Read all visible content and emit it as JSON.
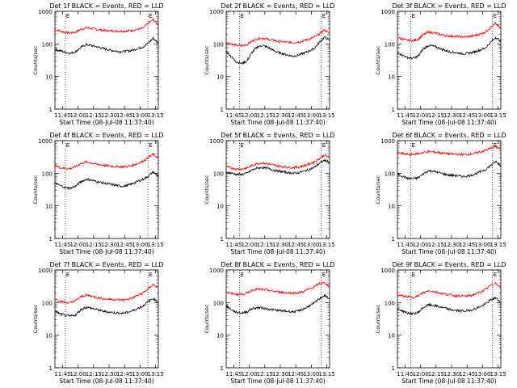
{
  "figure": {
    "ylabel": "Counts/sec",
    "xlabel": "Start Time (08-Jul-08 11:37:40)",
    "x_tick_labels": [
      "11:45",
      "12:00",
      "12:15",
      "12:30",
      "12:45",
      "13:00",
      "13:15"
    ],
    "y_tick_labels": [
      "1",
      "10",
      "100",
      "1000"
    ],
    "marker_labels": [
      "E",
      "E"
    ],
    "colors": {
      "events": "#000000",
      "lld": "#ff0000"
    }
  },
  "chart_data": [
    {
      "type": "line",
      "title": "Det 1f BLACK = Events, RED = LLD",
      "x_unit": "minutes since 11:37:40",
      "xlim": [
        0,
        100
      ],
      "ylim": [
        1,
        1000
      ],
      "log_y": true,
      "vlines_x": [
        10,
        90
      ],
      "x": [
        0,
        5,
        10,
        15,
        20,
        25,
        30,
        35,
        40,
        45,
        50,
        55,
        60,
        65,
        70,
        75,
        80,
        85,
        90,
        95,
        100
      ],
      "series": [
        {
          "name": "LLD",
          "color": "#ff0000",
          "values": [
            270,
            250,
            225,
            215,
            230,
            280,
            310,
            300,
            280,
            265,
            255,
            250,
            248,
            245,
            250,
            260,
            280,
            300,
            420,
            560,
            380
          ]
        },
        {
          "name": "Events",
          "color": "#000000",
          "values": [
            68,
            62,
            55,
            52,
            58,
            78,
            95,
            90,
            82,
            75,
            68,
            63,
            60,
            58,
            60,
            64,
            72,
            80,
            105,
            150,
            105
          ]
        }
      ]
    },
    {
      "type": "line",
      "title": "Det 2f BLACK = Events, RED = LLD",
      "x_unit": "minutes since 11:37:40",
      "xlim": [
        0,
        100
      ],
      "ylim": [
        1,
        1000
      ],
      "log_y": true,
      "vlines_x": [
        13,
        92
      ],
      "x": [
        0,
        5,
        10,
        15,
        20,
        25,
        30,
        35,
        40,
        45,
        50,
        55,
        60,
        65,
        70,
        75,
        80,
        85,
        90,
        95,
        100
      ],
      "series": [
        {
          "name": "LLD",
          "color": "#ff0000",
          "values": [
            115,
            100,
            90,
            88,
            95,
            120,
            145,
            150,
            140,
            130,
            120,
            115,
            112,
            110,
            115,
            125,
            140,
            160,
            200,
            270,
            210
          ]
        },
        {
          "name": "Events",
          "color": "#000000",
          "values": [
            60,
            40,
            28,
            25,
            30,
            55,
            80,
            90,
            80,
            65,
            55,
            50,
            45,
            42,
            46,
            52,
            60,
            72,
            110,
            160,
            130
          ]
        }
      ]
    },
    {
      "type": "line",
      "title": "Det 3f BLACK = Events, RED = LLD",
      "x_unit": "minutes since 11:37:40",
      "xlim": [
        0,
        100
      ],
      "ylim": [
        1,
        1000
      ],
      "log_y": true,
      "vlines_x": [
        13,
        92
      ],
      "x": [
        0,
        5,
        10,
        15,
        20,
        25,
        30,
        35,
        40,
        45,
        50,
        55,
        60,
        65,
        70,
        75,
        80,
        85,
        90,
        95,
        100
      ],
      "series": [
        {
          "name": "LLD",
          "color": "#ff0000",
          "values": [
            160,
            140,
            130,
            125,
            140,
            190,
            230,
            220,
            200,
            185,
            175,
            170,
            168,
            165,
            170,
            180,
            200,
            230,
            320,
            420,
            300
          ]
        },
        {
          "name": "Events",
          "color": "#000000",
          "values": [
            55,
            45,
            38,
            36,
            42,
            70,
            90,
            85,
            75,
            65,
            58,
            55,
            52,
            50,
            53,
            58,
            65,
            75,
            110,
            160,
            120
          ]
        }
      ]
    },
    {
      "type": "line",
      "title": "Det 4f BLACK = Events, RED = LLD",
      "x_unit": "minutes since 11:37:40",
      "xlim": [
        0,
        100
      ],
      "ylim": [
        1,
        1000
      ],
      "log_y": true,
      "vlines_x": [
        10,
        90
      ],
      "x": [
        0,
        5,
        10,
        15,
        20,
        25,
        30,
        35,
        40,
        45,
        50,
        55,
        60,
        65,
        70,
        75,
        80,
        85,
        90,
        95,
        100
      ],
      "series": [
        {
          "name": "LLD",
          "color": "#ff0000",
          "values": [
            175,
            150,
            140,
            140,
            160,
            200,
            220,
            210,
            190,
            180,
            170,
            165,
            160,
            158,
            162,
            175,
            200,
            230,
            300,
            380,
            300
          ]
        },
        {
          "name": "Events",
          "color": "#000000",
          "values": [
            50,
            42,
            36,
            35,
            40,
            55,
            65,
            62,
            56,
            52,
            48,
            45,
            42,
            40,
            42,
            48,
            56,
            65,
            80,
            110,
            80
          ]
        }
      ]
    },
    {
      "type": "line",
      "title": "Det 5f BLACK = Events, RED = LLD",
      "x_unit": "minutes since 11:37:40",
      "xlim": [
        0,
        100
      ],
      "ylim": [
        1,
        1000
      ],
      "log_y": true,
      "vlines_x": [
        13,
        92
      ],
      "x": [
        0,
        5,
        10,
        15,
        20,
        25,
        30,
        35,
        40,
        45,
        50,
        55,
        60,
        65,
        70,
        75,
        80,
        85,
        90,
        95,
        100
      ],
      "series": [
        {
          "name": "LLD",
          "color": "#ff0000",
          "values": [
            160,
            145,
            135,
            135,
            145,
            175,
            200,
            205,
            195,
            180,
            170,
            160,
            152,
            150,
            155,
            170,
            190,
            220,
            280,
            360,
            310
          ]
        },
        {
          "name": "Events",
          "color": "#000000",
          "values": [
            110,
            100,
            92,
            92,
            100,
            125,
            145,
            150,
            140,
            128,
            118,
            110,
            104,
            100,
            104,
            115,
            130,
            150,
            200,
            250,
            220
          ]
        }
      ]
    },
    {
      "type": "line",
      "title": "Det 6f BLACK = Events, RED = LLD",
      "x_unit": "minutes since 11:37:40",
      "xlim": [
        0,
        100
      ],
      "ylim": [
        1,
        1000
      ],
      "log_y": true,
      "vlines_x": [
        13,
        92
      ],
      "x": [
        0,
        5,
        10,
        15,
        20,
        25,
        30,
        35,
        40,
        45,
        50,
        55,
        60,
        65,
        70,
        75,
        80,
        85,
        90,
        95,
        100
      ],
      "series": [
        {
          "name": "LLD",
          "color": "#ff0000",
          "values": [
            420,
            400,
            380,
            380,
            400,
            430,
            460,
            450,
            430,
            410,
            395,
            385,
            378,
            375,
            385,
            410,
            450,
            500,
            580,
            650,
            560
          ]
        },
        {
          "name": "Events",
          "color": "#000000",
          "values": [
            95,
            80,
            70,
            68,
            72,
            95,
            120,
            115,
            105,
            95,
            88,
            85,
            82,
            80,
            85,
            95,
            110,
            130,
            170,
            230,
            170
          ]
        }
      ]
    },
    {
      "type": "line",
      "title": "Det 7f BLACK = Events, RED = LLD",
      "x_unit": "minutes since 11:37:40",
      "xlim": [
        0,
        100
      ],
      "ylim": [
        1,
        1000
      ],
      "log_y": true,
      "vlines_x": [
        10,
        90
      ],
      "x": [
        0,
        5,
        10,
        15,
        20,
        25,
        30,
        35,
        40,
        45,
        50,
        55,
        60,
        65,
        70,
        75,
        80,
        85,
        90,
        95,
        100
      ],
      "series": [
        {
          "name": "LLD",
          "color": "#ff0000",
          "values": [
            130,
            110,
            100,
            100,
            115,
            150,
            170,
            160,
            145,
            135,
            128,
            125,
            122,
            120,
            125,
            140,
            165,
            195,
            260,
            360,
            280
          ]
        },
        {
          "name": "Events",
          "color": "#000000",
          "values": [
            55,
            45,
            40,
            38,
            42,
            60,
            72,
            68,
            62,
            56,
            52,
            50,
            48,
            47,
            50,
            56,
            66,
            78,
            105,
            135,
            100
          ]
        }
      ]
    },
    {
      "type": "line",
      "title": "Det 8f BLACK = Events, RED = LLD",
      "x_unit": "minutes since 11:37:40",
      "xlim": [
        0,
        100
      ],
      "ylim": [
        1,
        1000
      ],
      "log_y": true,
      "vlines_x": [
        13,
        92
      ],
      "x": [
        0,
        5,
        10,
        15,
        20,
        25,
        30,
        35,
        40,
        45,
        50,
        55,
        60,
        65,
        70,
        75,
        80,
        85,
        90,
        95,
        100
      ],
      "series": [
        {
          "name": "LLD",
          "color": "#ff0000",
          "values": [
            210,
            190,
            180,
            180,
            195,
            240,
            260,
            250,
            240,
            225,
            215,
            205,
            200,
            195,
            200,
            220,
            260,
            300,
            380,
            400,
            320
          ]
        },
        {
          "name": "Events",
          "color": "#000000",
          "values": [
            80,
            60,
            50,
            48,
            52,
            65,
            70,
            68,
            64,
            60,
            58,
            55,
            54,
            52,
            56,
            64,
            78,
            95,
            130,
            165,
            130
          ]
        }
      ]
    },
    {
      "type": "line",
      "title": "Det 9f BLACK = Events, RED = LLD",
      "x_unit": "minutes since 11:37:40",
      "xlim": [
        0,
        100
      ],
      "ylim": [
        1,
        1000
      ],
      "log_y": true,
      "vlines_x": [
        13,
        92
      ],
      "x": [
        0,
        5,
        10,
        15,
        20,
        25,
        30,
        35,
        40,
        45,
        50,
        55,
        60,
        65,
        70,
        75,
        80,
        85,
        90,
        95,
        100
      ],
      "series": [
        {
          "name": "LLD",
          "color": "#ff0000",
          "values": [
            170,
            160,
            150,
            145,
            160,
            200,
            230,
            220,
            200,
            185,
            175,
            165,
            160,
            158,
            162,
            180,
            210,
            250,
            330,
            400,
            300
          ]
        },
        {
          "name": "Events",
          "color": "#000000",
          "values": [
            65,
            55,
            48,
            45,
            50,
            70,
            85,
            82,
            75,
            68,
            62,
            58,
            56,
            55,
            58,
            64,
            75,
            90,
            120,
            140,
            100
          ]
        }
      ]
    }
  ]
}
